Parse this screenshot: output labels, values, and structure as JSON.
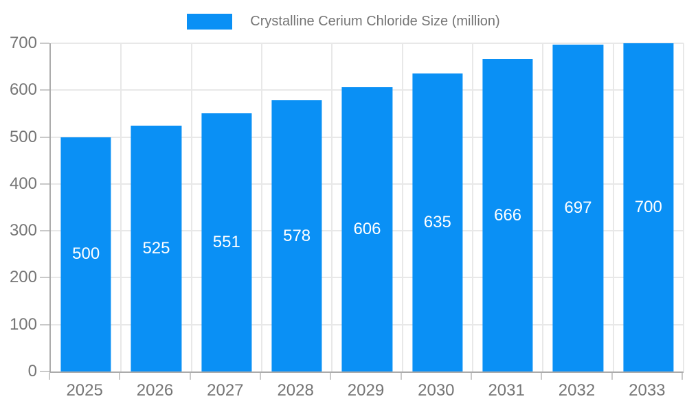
{
  "legend": {
    "label": "Crystalline Cerium Chloride Size (million)"
  },
  "chart_data": {
    "type": "bar",
    "title": "Crystalline Cerium Chloride Size (million)",
    "categories": [
      "2025",
      "2026",
      "2027",
      "2028",
      "2029",
      "2030",
      "2031",
      "2032",
      "2033"
    ],
    "values": [
      500,
      525,
      551,
      578,
      606,
      635,
      666,
      697,
      700
    ],
    "series_name": "Crystalline Cerium Chloride Size (million)",
    "xlabel": "",
    "ylabel": "",
    "ylim": [
      0,
      700
    ],
    "yticks": [
      0,
      100,
      200,
      300,
      400,
      500,
      600,
      700
    ],
    "grid": true,
    "legend_position": "top",
    "bar_color": "#0a90f5",
    "value_label_color": "#ffffff",
    "axis_text_color": "#757575",
    "gridline_color": "#e8e8e8",
    "axis_line_color": "#ababab"
  }
}
